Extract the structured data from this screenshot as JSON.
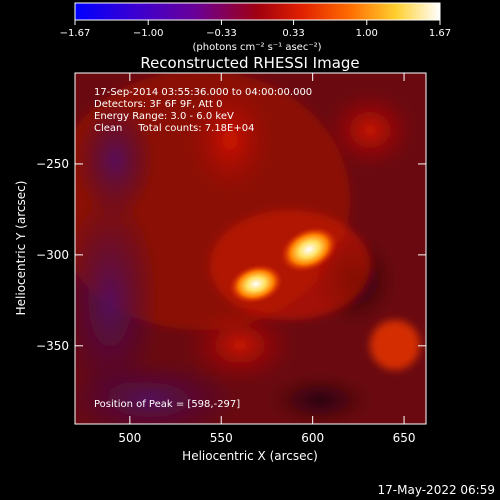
{
  "chart_data": {
    "type": "heatmap",
    "title": "Reconstructed RHESSI Image",
    "xlabel": "Heliocentric X (arcsec)",
    "ylabel": "Heliocentric Y (arcsec)",
    "xlim": [
      470,
      662
    ],
    "ylim": [
      -393,
      -200
    ],
    "x_ticks": [
      500,
      550,
      600,
      650
    ],
    "y_ticks": [
      -250,
      -300,
      -350
    ],
    "colorbar": {
      "range": [
        -1.67,
        1.67
      ],
      "ticks": [
        -1.67,
        -1.0,
        -0.33,
        0.33,
        1.0,
        1.67
      ],
      "tick_labels": [
        "−1.67",
        "−1.00",
        "−0.33",
        "0.33",
        "1.00",
        "1.67"
      ],
      "unit_label": "(photons cm⁻² s⁻¹ asec⁻²)",
      "colors": [
        "#0000ff",
        "#5a00c8",
        "#8a0070",
        "#c00000",
        "#ff3000",
        "#ffa000",
        "#ffff60",
        "#ffffff"
      ]
    },
    "annotations": [
      "17-Sep-2014 03:55:36.000 to 04:00:00.000",
      "Detectors: 3F 6F 9F, Att 0",
      "Energy Range: 3.0 - 6.0 keV",
      "Clean     Total counts: 7.18E+04"
    ],
    "peak_label": "Position of Peak = [598,-297]",
    "peak": [
      598,
      -297
    ],
    "sources": [
      {
        "x": 598,
        "y": -297,
        "value": 1.67
      },
      {
        "x": 569,
        "y": -316,
        "value": 1.35
      }
    ],
    "timestamp": "17-May-2022 06:59"
  }
}
